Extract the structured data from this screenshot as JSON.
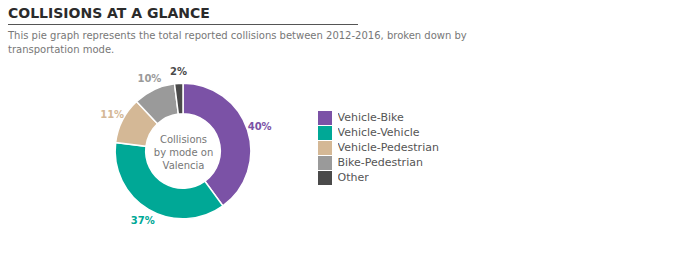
{
  "chart_data": {
    "type": "pie",
    "title": "COLLISIONS AT A GLANCE",
    "subtitle": "This pie graph represents the total reported collisions between 2012-2016, broken down by\ntransportation mode.",
    "annotations": [
      "Collisions\nby mode on\nValencia"
    ],
    "categories": [
      "Vehicle-Bike",
      "Vehicle-Vehicle",
      "Vehicle-Pedestrian",
      "Bike-Pedestrian",
      "Other"
    ],
    "values": [
      40,
      37,
      11,
      10,
      2
    ],
    "value_labels": [
      "40%",
      "37%",
      "11%",
      "10%",
      "2%"
    ],
    "colors": [
      "#7B52A6",
      "#00A896",
      "#D4B896",
      "#9A9A9A",
      "#4A4A4A"
    ],
    "data_labels": true,
    "legend": "right"
  }
}
